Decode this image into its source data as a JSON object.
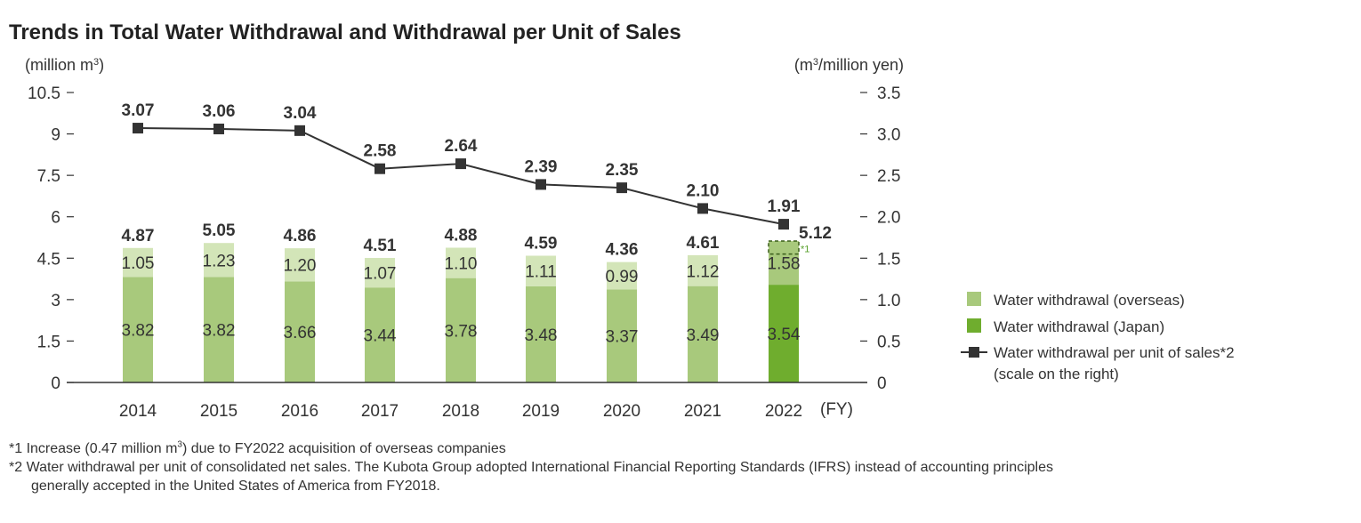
{
  "title": "Trends in Total Water Withdrawal and Withdrawal per Unit of Sales",
  "notes": {
    "note1": "*1 Increase (0.47 million m3) due to FY2022 acquisition of overseas companies",
    "note2_line1": "*2 Water withdrawal per unit of consolidated net sales. The Kubota Group adopted International Financial Reporting Standards (IFRS) instead of accounting principles",
    "note2_line2": "generally accepted in the United States of America from FY2018."
  },
  "colors": {
    "overseas": "#a8c97c",
    "overseas_light": "#d3e5b8",
    "japan": "#6fad2e",
    "japan_overseas_2022": "#a8c97c",
    "line": "#333333",
    "marker": "#333333",
    "axis": "#333333"
  },
  "chart_data": {
    "type": "bar",
    "title": "Trends in Total Water Withdrawal and Withdrawal per Unit of Sales",
    "y_left_label": "(million m3)",
    "y_right_label": "(m3/million yen)",
    "x_unit": "(FY)",
    "categories": [
      "2014",
      "2015",
      "2016",
      "2017",
      "2018",
      "2019",
      "2020",
      "2021",
      "2022"
    ],
    "y_left_ticks": [
      "0",
      "1.5",
      "3",
      "4.5",
      "6",
      "7.5",
      "9",
      "10.5"
    ],
    "y_right_ticks": [
      "0",
      "0.5",
      "1.0",
      "1.5",
      "2.0",
      "2.5",
      "3.0",
      "3.5"
    ],
    "y_left_range": [
      0,
      10.5
    ],
    "y_right_range": [
      0,
      3.5
    ],
    "series": [
      {
        "name": "Water withdrawal (Japan)",
        "values": [
          3.82,
          3.82,
          3.66,
          3.44,
          3.78,
          3.48,
          3.37,
          3.49,
          3.54
        ],
        "labels": [
          "3.82",
          "3.82",
          "3.66",
          "3.44",
          "3.78",
          "3.48",
          "3.37",
          "3.49",
          "3.54"
        ]
      },
      {
        "name": "Water withdrawal (overseas)",
        "values": [
          1.05,
          1.23,
          1.2,
          1.07,
          1.1,
          1.11,
          0.99,
          1.12,
          1.58
        ],
        "labels": [
          "1.05",
          "1.23",
          "1.20",
          "1.07",
          "1.10",
          "1.11",
          "0.99",
          "1.12",
          "1.58"
        ]
      },
      {
        "name": "Water withdrawal per unit of sales",
        "axis": "right",
        "values": [
          3.07,
          3.06,
          3.04,
          2.58,
          2.64,
          2.39,
          2.35,
          2.1,
          1.91
        ],
        "labels": [
          "3.07",
          "3.06",
          "3.04",
          "2.58",
          "2.64",
          "2.39",
          "2.35",
          "2.10",
          "1.91"
        ]
      }
    ],
    "totals": [
      "4.87",
      "5.05",
      "4.86",
      "4.51",
      "4.88",
      "4.59",
      "4.36",
      "4.61",
      "5.12"
    ],
    "acquisition_increase": 0.47,
    "acquisition_mark": "*1",
    "legend": [
      {
        "key": "overseas",
        "text": "Water withdrawal (overseas)"
      },
      {
        "key": "japan",
        "text": "Water withdrawal (Japan)"
      },
      {
        "key": "line",
        "text": "Water withdrawal per unit of sales*2",
        "text2": "(scale on the right)"
      }
    ],
    "legend_position": "right",
    "grid": false
  }
}
